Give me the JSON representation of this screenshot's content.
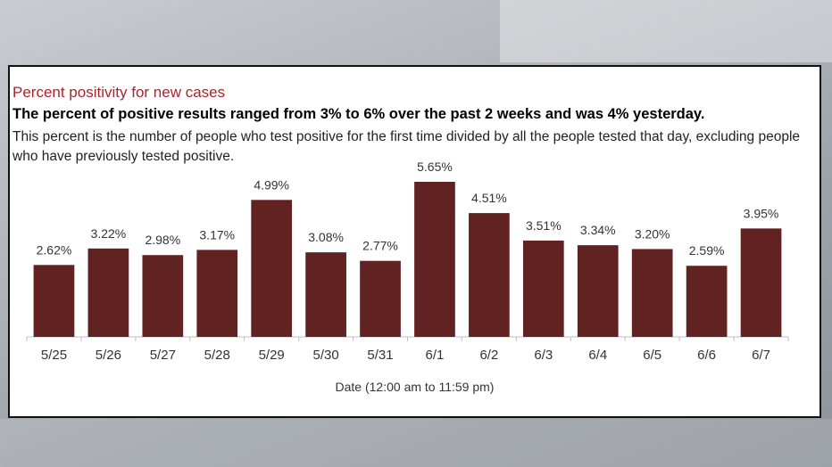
{
  "header": {
    "title": "Percent positivity for new cases",
    "subtitle": "The percent of positive results ranged from 3% to 6% over the past 2 weeks and was 4% yesterday.",
    "description": "This percent is the number of people who test positive for the first time divided by all the people tested that day, excluding people who have previously tested positive."
  },
  "colors": {
    "bar": "#612222",
    "title": "#a6262b",
    "axis": "#bfbfbf"
  },
  "chart_data": {
    "type": "bar",
    "categories": [
      "5/25",
      "5/26",
      "5/27",
      "5/28",
      "5/29",
      "5/30",
      "5/31",
      "6/1",
      "6/2",
      "6/3",
      "6/4",
      "6/5",
      "6/6",
      "6/7"
    ],
    "values": [
      2.62,
      3.22,
      2.98,
      3.17,
      4.99,
      3.08,
      2.77,
      5.65,
      4.51,
      3.51,
      3.34,
      3.2,
      2.59,
      3.95
    ],
    "data_labels": [
      "2.62%",
      "3.22%",
      "2.98%",
      "3.17%",
      "4.99%",
      "3.08%",
      "2.77%",
      "5.65%",
      "4.51%",
      "3.51%",
      "3.34%",
      "3.20%",
      "2.59%",
      "3.95%"
    ],
    "xlabel": "Date (12:00 am to 11:59 pm)",
    "ylabel": "",
    "ylim": [
      0,
      6
    ],
    "grid": false,
    "legend": "none"
  }
}
